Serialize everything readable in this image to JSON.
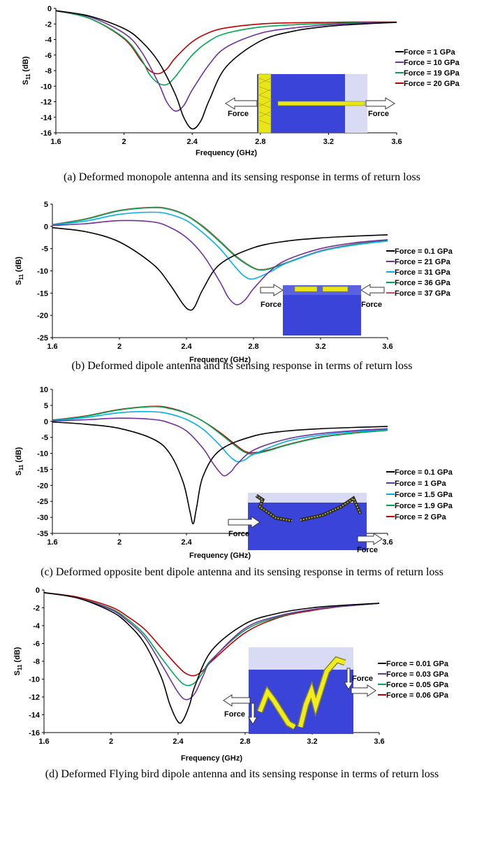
{
  "panels": [
    {
      "id": "a",
      "caption": "(a)  Deformed monopole antenna and  its sensing response in terms of return loss",
      "ylabel_main": "S",
      "ylabel_sub": "11",
      "ylabel_unit": " (dB)",
      "xlabel": "Frequency (GHz)",
      "force_label_left": "Force",
      "force_label_right": "Force",
      "chart_data": {
        "type": "line",
        "xlim": [
          1.6,
          3.6
        ],
        "ylim": [
          -16,
          0
        ],
        "xticks": [
          1.6,
          2,
          2.4,
          2.8,
          3.2,
          3.6
        ],
        "xtick_labels": [
          "1.6",
          "2",
          "2.4",
          "2.8",
          "3.2",
          "3.6"
        ],
        "yticks": [
          0,
          -2,
          -4,
          -6,
          -8,
          -10,
          -12,
          -14,
          -16
        ],
        "ytick_labels": [
          "0",
          "-2",
          "-4",
          "-6",
          "-8",
          "-10",
          "-12",
          "-14",
          "-16"
        ],
        "grid": false,
        "legend": "right",
        "series": [
          {
            "name": "Force = 1 GPa",
            "color": "#000000",
            "x": [
              1.6,
              1.8,
              2.0,
              2.1,
              2.2,
              2.3,
              2.35,
              2.4,
              2.45,
              2.5,
              2.6,
              2.8,
              3.0,
              3.2,
              3.4,
              3.6
            ],
            "values": [
              -0.3,
              -1.0,
              -2.6,
              -4.2,
              -6.8,
              -11.0,
              -14.0,
              -15.5,
              -14.5,
              -11.8,
              -7.5,
              -4.2,
              -2.9,
              -2.3,
              -2.0,
              -1.8
            ]
          },
          {
            "name": "Force = 10 GPa",
            "color": "#7030A0",
            "x": [
              1.6,
              1.8,
              2.0,
              2.1,
              2.2,
              2.25,
              2.3,
              2.35,
              2.4,
              2.5,
              2.6,
              2.8,
              3.0,
              3.2,
              3.4,
              3.6
            ],
            "values": [
              -0.3,
              -1.1,
              -3.2,
              -5.5,
              -9.5,
              -12.0,
              -13.2,
              -12.5,
              -10.5,
              -7.2,
              -5.0,
              -3.2,
              -2.5,
              -2.1,
              -1.9,
              -1.8
            ]
          },
          {
            "name": "Force = 19 GPa",
            "color": "#00A651",
            "x": [
              1.6,
              1.8,
              2.0,
              2.1,
              2.15,
              2.2,
              2.25,
              2.3,
              2.4,
              2.5,
              2.6,
              2.8,
              3.0,
              3.2,
              3.4,
              3.6
            ],
            "values": [
              -0.3,
              -1.3,
              -3.8,
              -6.5,
              -8.5,
              -9.6,
              -9.8,
              -8.8,
              -6.0,
              -4.2,
              -3.2,
              -2.4,
              -2.1,
              -1.95,
              -1.85,
              -1.8
            ]
          },
          {
            "name": "Force = 20 GPa",
            "color": "#C00000",
            "x": [
              1.6,
              1.8,
              2.0,
              2.1,
              2.15,
              2.2,
              2.25,
              2.3,
              2.4,
              2.5,
              2.6,
              2.8,
              3.0,
              3.2,
              3.4,
              3.6
            ],
            "values": [
              -0.3,
              -1.3,
              -3.9,
              -6.7,
              -8.0,
              -8.4,
              -7.8,
              -6.4,
              -4.3,
              -3.1,
              -2.5,
              -2.0,
              -1.85,
              -1.8,
              -1.75,
              -1.75
            ]
          }
        ]
      }
    },
    {
      "id": "b",
      "caption": "(b) Deformed dipole antenna and  its sensing response in terms of return loss",
      "ylabel_main": "S",
      "ylabel_sub": "11",
      "ylabel_unit": " (dB)",
      "xlabel": "Frequency (GHz)",
      "force_label_left": "Force",
      "force_label_right": "Force",
      "chart_data": {
        "type": "line",
        "xlim": [
          1.6,
          3.6
        ],
        "ylim": [
          -25,
          5
        ],
        "xticks": [
          1.6,
          2,
          2.4,
          2.8,
          3.2,
          3.6
        ],
        "xtick_labels": [
          "1.6",
          "2",
          "2.4",
          "2.8",
          "3.2",
          "3.6"
        ],
        "yticks": [
          5,
          0,
          -5,
          -10,
          -15,
          -20,
          -25
        ],
        "ytick_labels": [
          "5",
          "0",
          "-5",
          "-10",
          "-15",
          "-20",
          "-25"
        ],
        "grid": false,
        "legend": "right",
        "series": [
          {
            "name": "Force = 0.1 GPa",
            "color": "#000000",
            "x": [
              1.6,
              1.8,
              2.0,
              2.2,
              2.3,
              2.38,
              2.42,
              2.45,
              2.5,
              2.6,
              2.8,
              3.0,
              3.2,
              3.4,
              3.6
            ],
            "values": [
              -0.3,
              -1.2,
              -3.5,
              -8.5,
              -13.0,
              -17.5,
              -18.8,
              -18.0,
              -14.0,
              -8.5,
              -4.8,
              -3.3,
              -2.6,
              -2.2,
              -1.9
            ]
          },
          {
            "name": "Force = 21 GPa",
            "color": "#7030A0",
            "x": [
              1.6,
              1.8,
              2.0,
              2.2,
              2.3,
              2.4,
              2.5,
              2.6,
              2.65,
              2.7,
              2.75,
              2.8,
              2.9,
              3.0,
              3.2,
              3.4,
              3.6
            ],
            "values": [
              0.2,
              0.6,
              1.3,
              1.0,
              -0.2,
              -2.5,
              -6.5,
              -12.5,
              -16.0,
              -17.6,
              -16.5,
              -14.0,
              -10.0,
              -7.5,
              -5.0,
              -3.7,
              -3.0
            ]
          },
          {
            "name": "Force = 31 GPa",
            "color": "#00B0F0",
            "x": [
              1.6,
              1.8,
              2.0,
              2.2,
              2.3,
              2.4,
              2.5,
              2.6,
              2.7,
              2.75,
              2.8,
              2.9,
              3.0,
              3.2,
              3.4,
              3.6
            ],
            "values": [
              0.3,
              1.2,
              2.7,
              3.2,
              2.7,
              1.3,
              -1.5,
              -5.0,
              -9.5,
              -11.3,
              -11.8,
              -10.2,
              -8.2,
              -5.6,
              -4.2,
              -3.3
            ]
          },
          {
            "name": "Force = 36 GPa",
            "color": "#00A651",
            "x": [
              1.6,
              1.8,
              2.0,
              2.2,
              2.3,
              2.4,
              2.5,
              2.6,
              2.7,
              2.8,
              2.85,
              2.9,
              3.0,
              3.2,
              3.4,
              3.6
            ],
            "values": [
              0.3,
              1.6,
              3.5,
              4.2,
              3.8,
              2.4,
              -0.2,
              -3.5,
              -7.0,
              -9.4,
              -9.8,
              -9.5,
              -8.2,
              -5.6,
              -4.1,
              -3.2
            ]
          },
          {
            "name": "Force = 37 GPa",
            "color": "#C0504D",
            "x": [
              1.6,
              1.8,
              2.0,
              2.2,
              2.3,
              2.4,
              2.5,
              2.6,
              2.7,
              2.8,
              2.85,
              2.9,
              3.0,
              3.2,
              3.4,
              3.6
            ],
            "values": [
              0.4,
              1.7,
              3.6,
              4.3,
              3.9,
              2.5,
              0.0,
              -3.3,
              -6.8,
              -9.3,
              -9.7,
              -9.4,
              -8.1,
              -5.5,
              -4.0,
              -3.1
            ]
          }
        ]
      }
    },
    {
      "id": "c",
      "caption": "(c) Deformed opposite bent dipole antenna and  its sensing response in terms of return loss",
      "ylabel_main": "S",
      "ylabel_sub": "11",
      "ylabel_unit": " (dB)",
      "xlabel": "Frequency (GHz)",
      "force_label_left": "Force",
      "force_label_right": "Force",
      "chart_data": {
        "type": "line",
        "xlim": [
          1.6,
          3.6
        ],
        "ylim": [
          -35,
          10
        ],
        "xticks": [
          1.6,
          2,
          2.4,
          2.8,
          3.2,
          3.6
        ],
        "xtick_labels": [
          "1.6",
          "2",
          "2.4",
          "2.8",
          "3.2",
          "3.6"
        ],
        "yticks": [
          10,
          5,
          0,
          -5,
          -10,
          -15,
          -20,
          -25,
          -30,
          -35
        ],
        "ytick_labels": [
          "10",
          "5",
          "0",
          "-5",
          "-10",
          "-15",
          "-20",
          "-25",
          "-30",
          "-35"
        ],
        "grid": false,
        "legend": "right",
        "series": [
          {
            "name": "Force = 0.1 GPa",
            "color": "#000000",
            "x": [
              1.6,
              1.8,
              2.0,
              2.2,
              2.3,
              2.38,
              2.42,
              2.44,
              2.46,
              2.5,
              2.6,
              2.8,
              3.0,
              3.2,
              3.4,
              3.6
            ],
            "values": [
              -0.2,
              -0.9,
              -2.2,
              -5.5,
              -10.0,
              -19.0,
              -28.0,
              -32.0,
              -27.0,
              -17.0,
              -9.0,
              -4.6,
              -3.0,
              -2.3,
              -1.9,
              -1.6
            ]
          },
          {
            "name": "Force = 1 GPa",
            "color": "#7030A0",
            "x": [
              1.6,
              1.8,
              2.0,
              2.2,
              2.3,
              2.4,
              2.5,
              2.55,
              2.6,
              2.63,
              2.67,
              2.7,
              2.8,
              3.0,
              3.2,
              3.4,
              3.6
            ],
            "values": [
              0.1,
              0.5,
              1.0,
              0.6,
              -0.5,
              -3.0,
              -8.5,
              -12.5,
              -16.0,
              -17.0,
              -15.5,
              -13.5,
              -9.0,
              -5.5,
              -3.8,
              -2.9,
              -2.3
            ]
          },
          {
            "name": "Force = 1.5 GPa",
            "color": "#00B0F0",
            "x": [
              1.6,
              1.8,
              2.0,
              2.2,
              2.3,
              2.4,
              2.5,
              2.6,
              2.65,
              2.7,
              2.75,
              2.8,
              3.0,
              3.2,
              3.4,
              3.6
            ],
            "values": [
              0.2,
              1.2,
              2.7,
              3.0,
              2.3,
              0.6,
              -2.5,
              -7.5,
              -10.5,
              -12.5,
              -12.0,
              -10.3,
              -6.2,
              -4.3,
              -3.2,
              -2.6
            ]
          },
          {
            "name": "Force = 1.9 GPa",
            "color": "#00A651",
            "x": [
              1.6,
              1.8,
              2.0,
              2.2,
              2.3,
              2.4,
              2.5,
              2.6,
              2.7,
              2.75,
              2.8,
              2.9,
              3.0,
              3.2,
              3.4,
              3.6
            ],
            "values": [
              0.3,
              1.6,
              3.6,
              4.6,
              4.0,
              2.5,
              0.0,
              -3.8,
              -8.0,
              -9.7,
              -10.2,
              -9.0,
              -7.4,
              -5.0,
              -3.7,
              -2.8
            ]
          },
          {
            "name": "Force = 2 GPa",
            "color": "#C00000",
            "x": [
              1.6,
              1.8,
              2.0,
              2.2,
              2.3,
              2.4,
              2.5,
              2.6,
              2.7,
              2.75,
              2.8,
              2.9,
              3.0,
              3.2,
              3.4,
              3.6
            ],
            "values": [
              0.4,
              1.7,
              3.7,
              4.7,
              4.2,
              2.6,
              0.0,
              -3.5,
              -7.6,
              -9.4,
              -9.8,
              -8.8,
              -7.3,
              -4.9,
              -3.6,
              -2.8
            ]
          }
        ]
      }
    },
    {
      "id": "d",
      "caption": "(d) Deformed Flying bird dipole antenna and its sensing response in terms of return loss",
      "ylabel_main": "S",
      "ylabel_sub": "11",
      "ylabel_unit": " (dB)",
      "xlabel": "Frequency (GHz)",
      "force_label_left": "Force",
      "force_label_right": "Force",
      "chart_data": {
        "type": "line",
        "xlim": [
          1.6,
          3.6
        ],
        "ylim": [
          -16,
          0
        ],
        "xticks": [
          1.6,
          2,
          2.4,
          2.8,
          3.2,
          3.6
        ],
        "xtick_labels": [
          "1.6",
          "2",
          "2.4",
          "2.8",
          "3.2",
          "3.6"
        ],
        "yticks": [
          0,
          -2,
          -4,
          -6,
          -8,
          -10,
          -12,
          -14,
          -16
        ],
        "ytick_labels": [
          "0",
          "-2",
          "-4",
          "-6",
          "-8",
          "-10",
          "-12",
          "-14",
          "-16"
        ],
        "grid": false,
        "legend": "right",
        "series": [
          {
            "name": "Force = 0.01 GPa",
            "color": "#000000",
            "x": [
              1.6,
              1.8,
              2.0,
              2.1,
              2.2,
              2.3,
              2.35,
              2.4,
              2.43,
              2.47,
              2.5,
              2.6,
              2.8,
              3.0,
              3.2,
              3.4,
              3.6
            ],
            "values": [
              -0.3,
              -0.9,
              -2.4,
              -3.8,
              -6.0,
              -9.8,
              -12.8,
              -14.8,
              -14.6,
              -12.8,
              -10.8,
              -6.8,
              -3.8,
              -2.6,
              -2.0,
              -1.7,
              -1.5
            ]
          },
          {
            "name": "Force = 0.03 GPa",
            "color": "#7030A0",
            "x": [
              1.6,
              1.8,
              2.0,
              2.1,
              2.2,
              2.3,
              2.4,
              2.45,
              2.5,
              2.55,
              2.6,
              2.8,
              3.0,
              3.2,
              3.4,
              3.6
            ],
            "values": [
              -0.3,
              -0.9,
              -2.2,
              -3.5,
              -5.3,
              -8.3,
              -11.5,
              -12.3,
              -11.6,
              -9.6,
              -7.9,
              -4.3,
              -2.9,
              -2.2,
              -1.8,
              -1.5
            ]
          },
          {
            "name": "Force = 0.05 GPa",
            "color": "#00A651",
            "x": [
              1.6,
              1.8,
              2.0,
              2.1,
              2.2,
              2.3,
              2.4,
              2.45,
              2.5,
              2.55,
              2.6,
              2.8,
              3.0,
              3.2,
              3.4,
              3.6
            ],
            "values": [
              -0.3,
              -0.9,
              -2.1,
              -3.3,
              -5.0,
              -7.6,
              -10.0,
              -10.7,
              -10.4,
              -9.2,
              -7.8,
              -4.5,
              -3.0,
              -2.2,
              -1.8,
              -1.5
            ]
          },
          {
            "name": "Force = 0.06 GPa",
            "color": "#C00000",
            "x": [
              1.6,
              1.8,
              2.0,
              2.1,
              2.2,
              2.3,
              2.4,
              2.45,
              2.5,
              2.55,
              2.6,
              2.8,
              3.0,
              3.2,
              3.4,
              3.6
            ],
            "values": [
              -0.3,
              -0.8,
              -1.9,
              -3.0,
              -4.4,
              -6.5,
              -8.6,
              -9.4,
              -9.6,
              -9.0,
              -8.0,
              -4.8,
              -3.1,
              -2.3,
              -1.8,
              -1.5
            ]
          }
        ]
      }
    }
  ]
}
